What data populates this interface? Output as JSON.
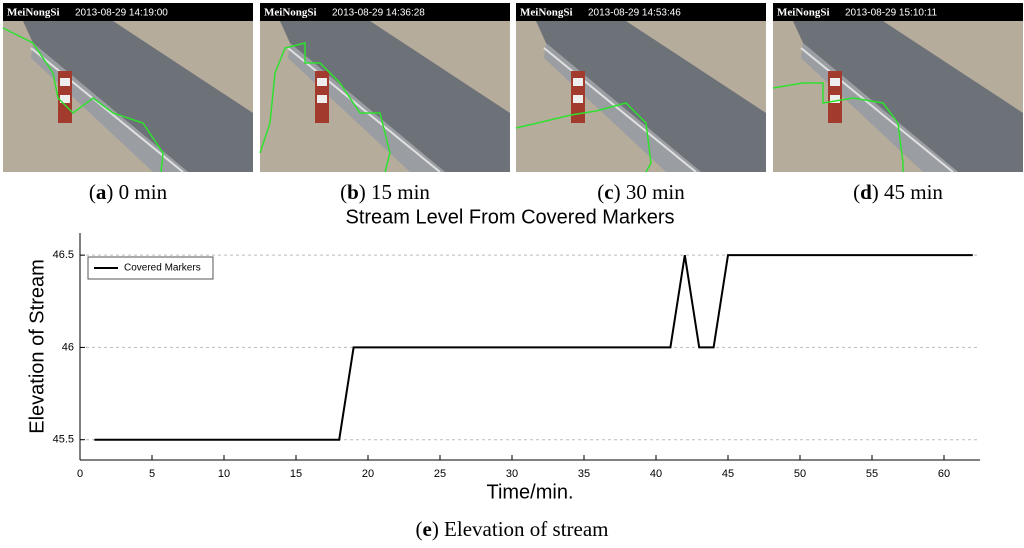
{
  "panels": [
    {
      "station": "MeiNongSi",
      "timestamp": "2013-08-29 14:19:00",
      "caption": [
        {
          "text": "(",
          "bold": false
        },
        {
          "text": "a",
          "bold": true
        },
        {
          "text": ") 0 min",
          "bold": false
        }
      ]
    },
    {
      "station": "MeiNongSi",
      "timestamp": "2013-08-29 14:36:28",
      "caption": [
        {
          "text": "(",
          "bold": false
        },
        {
          "text": "b",
          "bold": true
        },
        {
          "text": ") 15 min",
          "bold": false
        }
      ]
    },
    {
      "station": "MeiNongSi",
      "timestamp": "2013-08-29 14:53:46",
      "caption": [
        {
          "text": "(",
          "bold": false
        },
        {
          "text": "c",
          "bold": true
        },
        {
          "text": ") 30 min",
          "bold": false
        }
      ]
    },
    {
      "station": "MeiNongSi",
      "timestamp": "2013-08-29 15:10:11",
      "caption": [
        {
          "text": "(",
          "bold": false
        },
        {
          "text": "d",
          "bold": true
        },
        {
          "text": ") 45 min",
          "bold": false
        }
      ]
    }
  ],
  "chart_data": {
    "type": "line",
    "title": "Stream Level From Covered Markers",
    "x_label": "Time/min.",
    "y_label": "Elevation of Stream",
    "x": [
      1,
      18,
      19,
      41,
      42,
      43,
      44,
      45,
      62
    ],
    "series": [
      {
        "name": "Covered Markers",
        "color": "#000000",
        "values": [
          45.5,
          45.5,
          46,
          46,
          46.5,
          46,
          46,
          46.5,
          46.5
        ]
      }
    ],
    "xlim": [
      0,
      62.5
    ],
    "xticks": [
      0,
      5,
      10,
      15,
      20,
      25,
      30,
      35,
      40,
      45,
      50,
      55,
      60
    ],
    "ylim": [
      45.39,
      46.62
    ],
    "yticks": [
      45.5,
      46,
      46.5
    ],
    "grid": true,
    "legend": "upper left"
  },
  "caption": [
    {
      "text": "(",
      "bold": false
    },
    {
      "text": "e",
      "bold": true
    },
    {
      "text": ") Elevation of stream",
      "bold": false
    }
  ]
}
